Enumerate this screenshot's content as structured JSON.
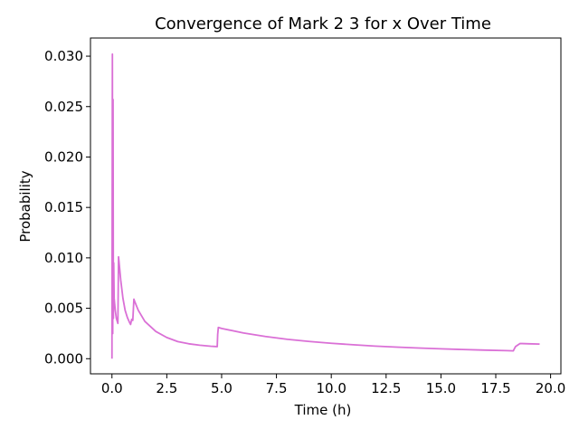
{
  "chart_data": {
    "type": "line",
    "title": "Convergence of Mark 2 3 for x Over Time",
    "xlabel": "Time (h)",
    "ylabel": "Probability",
    "xlim": [
      -0.98,
      20.47
    ],
    "ylim": [
      -0.0015,
      0.0318
    ],
    "xticks": [
      0.0,
      2.5,
      5.0,
      7.5,
      10.0,
      12.5,
      15.0,
      17.5,
      20.0
    ],
    "xtick_labels": [
      "0.0",
      "2.5",
      "5.0",
      "7.5",
      "10.0",
      "12.5",
      "15.0",
      "17.5",
      "20.0"
    ],
    "yticks": [
      0.0,
      0.005,
      0.01,
      0.015,
      0.02,
      0.025,
      0.03
    ],
    "ytick_labels": [
      "0.000",
      "0.005",
      "0.010",
      "0.015",
      "0.020",
      "0.025",
      "0.030"
    ],
    "grid": false,
    "legend": "none",
    "series": [
      {
        "color": "#da70d6",
        "x": [
          0.0,
          0.02,
          0.035,
          0.05,
          0.065,
          0.08,
          0.1,
          0.15,
          0.2,
          0.27,
          0.3,
          0.4,
          0.5,
          0.6,
          0.7,
          0.8,
          0.85,
          0.9,
          0.95,
          1.0,
          1.05,
          1.2,
          1.5,
          2.0,
          2.5,
          3.0,
          3.5,
          4.0,
          4.5,
          4.8,
          4.82,
          4.85,
          5.0,
          6.0,
          7.0,
          8.0,
          9.0,
          10.0,
          11.0,
          12.0,
          13.0,
          14.0,
          15.0,
          16.0,
          17.0,
          18.0,
          18.3,
          18.35,
          18.4,
          18.5,
          18.6,
          18.7,
          19.0,
          19.5
        ],
        "y": [
          0.0,
          0.0302,
          0.0025,
          0.0257,
          0.004,
          0.0095,
          0.006,
          0.0048,
          0.004,
          0.0035,
          0.0101,
          0.0078,
          0.006,
          0.0048,
          0.0041,
          0.0036,
          0.0034,
          0.0039,
          0.0038,
          0.0059,
          0.0056,
          0.0048,
          0.0037,
          0.0027,
          0.0021,
          0.0017,
          0.00148,
          0.00134,
          0.00124,
          0.0012,
          0.0024,
          0.0031,
          0.003,
          0.00255,
          0.0022,
          0.00192,
          0.00171,
          0.00153,
          0.00138,
          0.00125,
          0.00115,
          0.00106,
          0.00098,
          0.00091,
          0.00085,
          0.0008,
          0.00078,
          0.001,
          0.0012,
          0.00135,
          0.0015,
          0.0015,
          0.00148,
          0.00145
        ]
      }
    ]
  }
}
